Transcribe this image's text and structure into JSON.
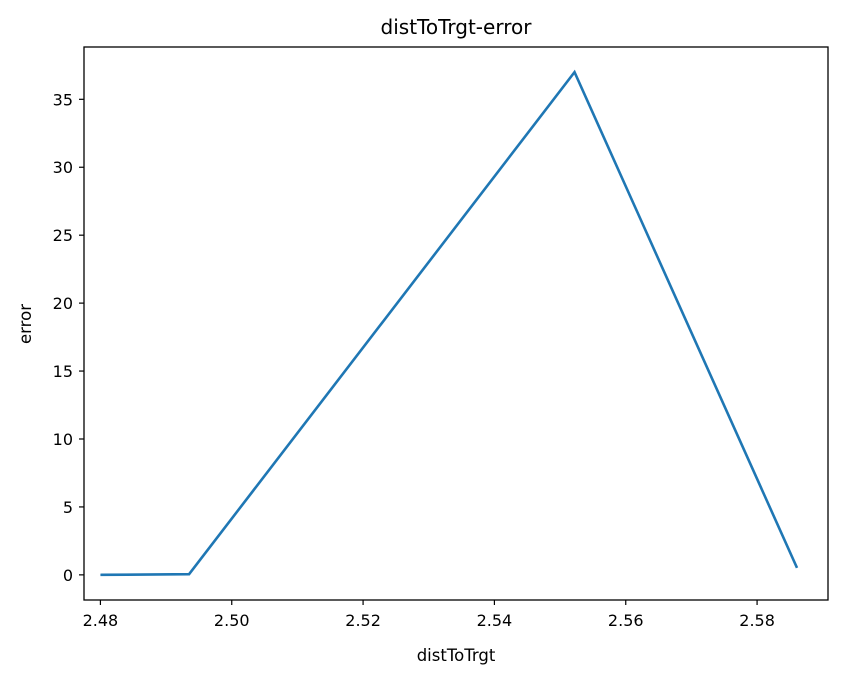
{
  "chart_data": {
    "type": "line",
    "title": "distToTrgt-error",
    "xlabel": "distToTrgt",
    "ylabel": "error",
    "xlim": [
      2.4775,
      2.5908
    ],
    "ylim": [
      -1.85,
      38.85
    ],
    "xticks": [
      2.48,
      2.5,
      2.52,
      2.54,
      2.56,
      2.58
    ],
    "xtick_labels": [
      "2.48",
      "2.50",
      "2.52",
      "2.54",
      "2.56",
      "2.58"
    ],
    "yticks": [
      0,
      5,
      10,
      15,
      20,
      25,
      30,
      35
    ],
    "ytick_labels": [
      "0",
      "5",
      "10",
      "15",
      "20",
      "25",
      "30",
      "35"
    ],
    "grid": false,
    "series": [
      {
        "name": "error",
        "color": "#1f77b4",
        "x": [
          2.4802,
          2.4935,
          2.5522,
          2.586
        ],
        "y": [
          0.0,
          0.05,
          37.0,
          0.6
        ]
      }
    ]
  }
}
